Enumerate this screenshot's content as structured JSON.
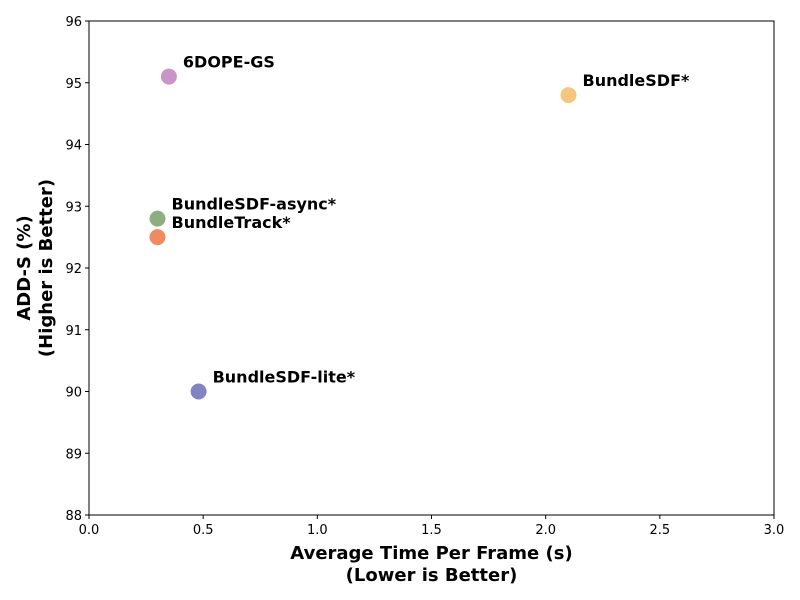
{
  "chart_data": {
    "type": "scatter",
    "title": "",
    "xlabel_lines": [
      "Average Time Per Frame (s)",
      "(Lower is Better)"
    ],
    "ylabel_lines": [
      "ADD-S (%)",
      "(Higher is Better)"
    ],
    "xlim": [
      0.0,
      3.0
    ],
    "ylim": [
      88,
      96
    ],
    "xticks": [
      "0.0",
      "0.5",
      "1.0",
      "1.5",
      "2.0",
      "2.5",
      "3.0"
    ],
    "yticks": [
      "88",
      "89",
      "90",
      "91",
      "92",
      "93",
      "94",
      "95",
      "96"
    ],
    "grid": false,
    "points": [
      {
        "name": "6DOPE-GS",
        "x": 0.35,
        "y": 95.1,
        "color": "#c994c7"
      },
      {
        "name": "BundleSDF*",
        "x": 2.1,
        "y": 94.8,
        "color": "#f5c77e"
      },
      {
        "name": "BundleSDF-async*",
        "x": 0.3,
        "y": 92.8,
        "color": "#8fae7f"
      },
      {
        "name": "BundleTrack*",
        "x": 0.3,
        "y": 92.5,
        "color": "#ef8a62"
      },
      {
        "name": "BundleSDF-lite*",
        "x": 0.48,
        "y": 90.0,
        "color": "#8085c0"
      }
    ]
  }
}
